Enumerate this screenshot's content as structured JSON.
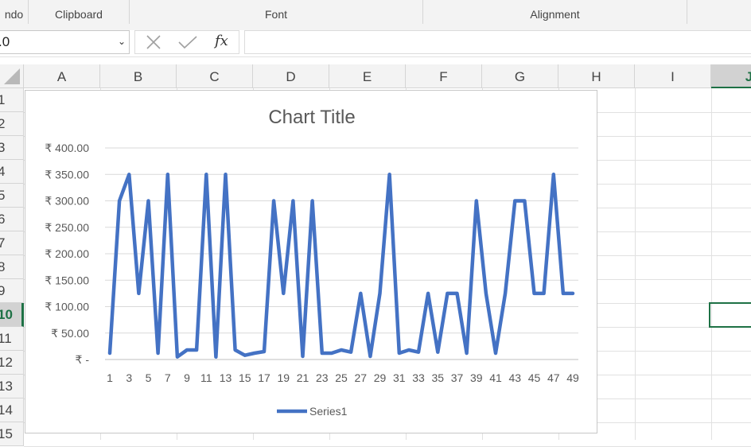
{
  "ribbon": {
    "groups": [
      {
        "label": "ndo"
      },
      {
        "label": "Clipboard"
      },
      {
        "label": "Font"
      },
      {
        "label": "Alignment"
      },
      {
        "label": ""
      }
    ]
  },
  "formula_bar": {
    "name_box_value": ".0",
    "cancel_icon": "close-icon",
    "enter_icon": "check-icon",
    "fx_label": "fx",
    "formula_value": ""
  },
  "grid": {
    "columns": [
      "A",
      "B",
      "C",
      "D",
      "E",
      "F",
      "G",
      "H",
      "I",
      "J"
    ],
    "selected_column": "J",
    "rows": [
      "1",
      "2",
      "3",
      "4",
      "5",
      "6",
      "7",
      "8",
      "9",
      "10",
      "11",
      "12",
      "13",
      "14",
      "15"
    ],
    "selected_row": "10"
  },
  "chart_data": {
    "type": "line",
    "title": "Chart Title",
    "xlabel": "",
    "ylabel": "",
    "x": [
      1,
      2,
      3,
      4,
      5,
      6,
      7,
      8,
      9,
      10,
      11,
      12,
      13,
      14,
      15,
      16,
      17,
      18,
      19,
      20,
      21,
      22,
      23,
      24,
      25,
      26,
      27,
      28,
      29,
      30,
      31,
      32,
      33,
      34,
      35,
      36,
      37,
      38,
      39,
      40,
      41,
      42,
      43,
      44,
      45,
      46,
      47,
      48,
      49
    ],
    "x_tick_labels": [
      "1",
      "3",
      "5",
      "7",
      "9",
      "11",
      "13",
      "15",
      "17",
      "19",
      "21",
      "23",
      "25",
      "27",
      "29",
      "31",
      "33",
      "35",
      "37",
      "39",
      "41",
      "43",
      "45",
      "47",
      "49"
    ],
    "y_tick_labels": [
      "₹ -",
      "₹ 50.00",
      "₹ 100.00",
      "₹ 150.00",
      "₹ 200.00",
      "₹ 250.00",
      "₹ 300.00",
      "₹ 350.00",
      "₹ 400.00"
    ],
    "ylim": [
      0,
      400
    ],
    "grid": true,
    "legend_position": "bottom",
    "series": [
      {
        "name": "Series1",
        "color": "#4472C4",
        "values": [
          12,
          300,
          350,
          125,
          300,
          12,
          350,
          5,
          18,
          18,
          350,
          5,
          350,
          18,
          8,
          12,
          15,
          300,
          125,
          300,
          6,
          300,
          12,
          12,
          18,
          14,
          125,
          6,
          125,
          350,
          12,
          18,
          14,
          125,
          14,
          125,
          125,
          12,
          300,
          125,
          12,
          125,
          300,
          300,
          125,
          125,
          350,
          125,
          125
        ]
      }
    ]
  }
}
